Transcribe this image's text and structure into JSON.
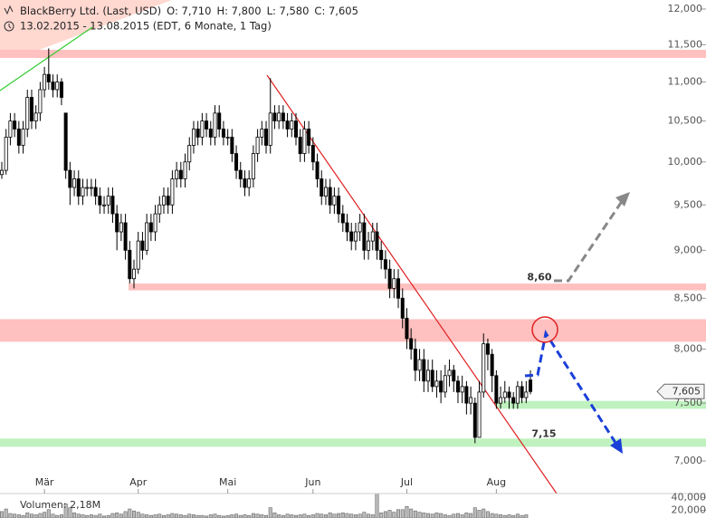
{
  "chart_data": {
    "type": "candlestick",
    "header": {
      "title": "BlackBerry Ltd. (Last, USD)",
      "open": "O: 7,710",
      "high": "H: 7,800",
      "low": "L: 7,580",
      "close": "C: 7,605",
      "range": "13.02.2015 - 13.08.2015 (EDT, 6 Monate, 1 Tag)"
    },
    "categories": [
      null,
      null,
      null,
      null,
      null,
      null,
      null,
      null,
      null,
      null,
      "Mär",
      null,
      null,
      null,
      null,
      null,
      null,
      null,
      null,
      null,
      null,
      null,
      null,
      null,
      null,
      null,
      null,
      null,
      null,
      null,
      null,
      null,
      "Apr",
      null,
      null,
      null,
      null,
      null,
      null,
      null,
      null,
      null,
      null,
      null,
      null,
      null,
      null,
      null,
      null,
      null,
      null,
      null,
      null,
      "Mai",
      null,
      null,
      null,
      null,
      null,
      null,
      null,
      null,
      null,
      null,
      null,
      null,
      null,
      null,
      null,
      null,
      null,
      null,
      null,
      "Jun",
      null,
      null,
      null,
      null,
      null,
      null,
      null,
      null,
      null,
      null,
      null,
      null,
      null,
      null,
      null,
      null,
      null,
      null,
      null,
      null,
      null,
      "Jul",
      null,
      null,
      null,
      null,
      null,
      null,
      null,
      null,
      null,
      null,
      null,
      null,
      null,
      null,
      null,
      null,
      null,
      null,
      null,
      null,
      "Aug",
      null,
      null,
      null,
      null,
      null,
      null,
      null,
      null
    ],
    "open": [
      9.85,
      9.9,
      10.3,
      10.5,
      10.4,
      10.2,
      10.4,
      10.8,
      10.5,
      10.6,
      10.9,
      11.1,
      11.0,
      10.9,
      11.0,
      10.6,
      9.9,
      9.7,
      9.8,
      9.6,
      9.7,
      9.7,
      9.7,
      9.6,
      9.5,
      9.5,
      9.6,
      9.4,
      9.2,
      9.3,
      9.0,
      8.7,
      8.8,
      9.1,
      9.0,
      9.3,
      9.2,
      9.4,
      9.5,
      9.6,
      9.5,
      9.8,
      9.9,
      9.8,
      10.0,
      10.2,
      10.4,
      10.3,
      10.5,
      10.4,
      10.3,
      10.6,
      10.4,
      10.3,
      10.3,
      10.1,
      9.9,
      9.8,
      9.7,
      9.8,
      10.1,
      10.3,
      10.4,
      10.2,
      10.6,
      10.5,
      10.6,
      10.5,
      10.4,
      10.5,
      10.3,
      10.1,
      10.4,
      10.2,
      10.0,
      9.8,
      9.6,
      9.7,
      9.5,
      9.6,
      9.4,
      9.3,
      9.2,
      9.1,
      9.2,
      9.3,
      9.0,
      9.1,
      9.2,
      9.0,
      8.9,
      8.8,
      8.6,
      8.7,
      8.5,
      8.3,
      8.1,
      8.0,
      7.8,
      7.9,
      7.7,
      7.8,
      7.65,
      7.7,
      7.6,
      7.75,
      7.8,
      7.7,
      7.6,
      7.65,
      7.5,
      7.5,
      7.2,
      7.6,
      8.05,
      7.95,
      7.75,
      7.5,
      7.55,
      7.6,
      7.55,
      7.5,
      7.65,
      7.55,
      7.71
    ],
    "high": [
      10.0,
      10.4,
      10.6,
      10.6,
      10.5,
      10.5,
      10.9,
      10.9,
      10.7,
      11.0,
      11.2,
      11.45,
      11.1,
      11.1,
      11.05,
      10.6,
      10.0,
      9.9,
      9.9,
      9.8,
      9.8,
      9.8,
      9.8,
      9.7,
      9.6,
      9.7,
      9.7,
      9.5,
      9.4,
      9.4,
      9.1,
      8.9,
      9.2,
      9.2,
      9.4,
      9.4,
      9.5,
      9.6,
      9.7,
      9.7,
      9.9,
      10.0,
      10.0,
      10.1,
      10.3,
      10.5,
      10.5,
      10.6,
      10.6,
      10.5,
      10.7,
      10.7,
      10.5,
      10.4,
      10.4,
      10.2,
      10.0,
      9.9,
      9.9,
      10.2,
      10.4,
      10.5,
      10.5,
      11.05,
      10.7,
      10.7,
      10.7,
      10.6,
      10.6,
      10.6,
      10.4,
      10.5,
      10.5,
      10.3,
      10.1,
      9.9,
      9.8,
      9.8,
      9.7,
      9.7,
      9.5,
      9.4,
      9.3,
      9.3,
      9.4,
      9.4,
      9.2,
      9.3,
      9.3,
      9.1,
      9.0,
      8.9,
      8.8,
      8.8,
      8.6,
      8.4,
      8.2,
      8.1,
      8.0,
      8.0,
      7.9,
      7.9,
      7.8,
      7.8,
      7.85,
      7.9,
      7.85,
      7.75,
      7.75,
      7.7,
      7.65,
      7.55,
      7.7,
      8.15,
      8.1,
      8.0,
      7.8,
      7.65,
      7.7,
      7.65,
      7.6,
      7.7,
      7.7,
      7.7,
      7.8
    ],
    "low": [
      9.8,
      9.85,
      10.2,
      10.3,
      10.1,
      10.1,
      10.3,
      10.4,
      10.4,
      10.5,
      10.8,
      10.9,
      10.8,
      10.8,
      10.7,
      9.8,
      9.5,
      9.6,
      9.5,
      9.5,
      9.6,
      9.6,
      9.5,
      9.4,
      9.4,
      9.4,
      9.3,
      9.0,
      9.1,
      8.9,
      8.65,
      8.6,
      8.75,
      8.9,
      8.95,
      9.1,
      9.1,
      9.3,
      9.4,
      9.4,
      9.4,
      9.7,
      9.7,
      9.7,
      9.9,
      10.1,
      10.2,
      10.2,
      10.3,
      10.2,
      10.2,
      10.3,
      10.2,
      10.2,
      10.0,
      9.8,
      9.7,
      9.6,
      9.6,
      9.7,
      10.0,
      10.2,
      10.1,
      10.1,
      10.4,
      10.4,
      10.4,
      10.3,
      10.3,
      10.2,
      10.0,
      10.0,
      10.1,
      9.9,
      9.7,
      9.5,
      9.5,
      9.4,
      9.4,
      9.3,
      9.2,
      9.1,
      9.0,
      9.0,
      9.1,
      8.9,
      8.9,
      9.0,
      8.9,
      8.8,
      8.7,
      8.5,
      8.5,
      8.4,
      8.2,
      8.0,
      7.9,
      7.7,
      7.7,
      7.6,
      7.6,
      7.6,
      7.55,
      7.5,
      7.55,
      7.65,
      7.6,
      7.5,
      7.5,
      7.4,
      7.4,
      7.15,
      7.2,
      7.55,
      7.8,
      7.6,
      7.45,
      7.45,
      7.5,
      7.45,
      7.45,
      7.45,
      7.5,
      7.5,
      7.58
    ],
    "close": [
      9.9,
      10.3,
      10.5,
      10.4,
      10.2,
      10.4,
      10.8,
      10.5,
      10.6,
      10.9,
      11.1,
      11.0,
      10.9,
      11.0,
      10.8,
      9.9,
      9.7,
      9.8,
      9.6,
      9.7,
      9.7,
      9.7,
      9.6,
      9.5,
      9.5,
      9.6,
      9.4,
      9.2,
      9.3,
      9.0,
      8.7,
      8.8,
      9.1,
      9.0,
      9.3,
      9.2,
      9.4,
      9.5,
      9.6,
      9.5,
      9.8,
      9.9,
      9.8,
      10.0,
      10.2,
      10.4,
      10.3,
      10.5,
      10.4,
      10.3,
      10.6,
      10.4,
      10.3,
      10.3,
      10.1,
      9.9,
      9.8,
      9.7,
      9.8,
      10.1,
      10.3,
      10.4,
      10.2,
      10.6,
      10.5,
      10.6,
      10.5,
      10.4,
      10.5,
      10.3,
      10.1,
      10.4,
      10.2,
      10.0,
      9.8,
      9.6,
      9.7,
      9.5,
      9.6,
      9.4,
      9.3,
      9.2,
      9.1,
      9.2,
      9.3,
      9.0,
      9.1,
      9.2,
      9.0,
      8.9,
      8.8,
      8.6,
      8.7,
      8.5,
      8.3,
      8.1,
      8.0,
      7.8,
      7.9,
      7.7,
      7.8,
      7.65,
      7.7,
      7.6,
      7.75,
      7.8,
      7.7,
      7.6,
      7.65,
      7.5,
      7.55,
      7.2,
      7.6,
      8.05,
      7.95,
      7.75,
      7.5,
      7.55,
      7.6,
      7.55,
      7.5,
      7.65,
      7.55,
      7.6,
      7.605
    ],
    "last_label": "7,605",
    "ylim": [
      6.77,
      12.13
    ],
    "log_y": true,
    "yticks": [
      {
        "value": 7,
        "label": "7,000"
      },
      {
        "value": 7.5,
        "label": "7,500"
      },
      {
        "value": 8,
        "label": "8,000"
      },
      {
        "value": 8.5,
        "label": "8,500"
      },
      {
        "value": 9,
        "label": "9,000"
      },
      {
        "value": 9.5,
        "label": "9,500"
      },
      {
        "value": 10,
        "label": "10,000"
      },
      {
        "value": 10.5,
        "label": "10,500"
      },
      {
        "value": 11,
        "label": "11,000"
      },
      {
        "value": 11.5,
        "label": "11,500"
      },
      {
        "value": 12,
        "label": "12,000"
      }
    ],
    "volume": [
      18000,
      22000,
      15000,
      14000,
      13000,
      12000,
      16000,
      14000,
      13000,
      15000,
      17000,
      21000,
      14000,
      12000,
      13000,
      30000,
      24000,
      16000,
      14000,
      13000,
      12000,
      13000,
      12000,
      14000,
      11000,
      12000,
      15000,
      16000,
      14000,
      18000,
      22000,
      19000,
      17000,
      14000,
      13000,
      12000,
      13000,
      14000,
      12000,
      13000,
      15000,
      14000,
      13000,
      12000,
      14000,
      13000,
      12000,
      12000,
      11000,
      13000,
      14000,
      12000,
      11000,
      12000,
      13000,
      14000,
      12000,
      13000,
      12000,
      15000,
      14000,
      13000,
      12000,
      24000,
      16000,
      13000,
      12000,
      14000,
      13000,
      12000,
      13000,
      14000,
      12000,
      13000,
      15000,
      14000,
      13000,
      16000,
      14000,
      15000,
      16000,
      15000,
      14000,
      13000,
      14000,
      17000,
      14000,
      13000,
      46000,
      16000,
      18000,
      20000,
      17000,
      21000,
      21000,
      26000,
      22000,
      19000,
      17000,
      16000,
      15000,
      14000,
      16000,
      15000,
      13000,
      12000,
      14000,
      15000,
      13000,
      16000,
      15000,
      24000,
      20000,
      22000,
      18000,
      15000,
      14000,
      13000,
      12000,
      13000,
      12000,
      14000,
      12000,
      13000,
      2180
    ],
    "volume_label": "Volumen: 2,18M",
    "vlim": [
      8000,
      46000
    ],
    "vticks": [
      {
        "value": 20000,
        "label": "20,000"
      },
      {
        "value": 40000,
        "label": "40,000"
      }
    ],
    "zones": [
      {
        "lo": 11.32,
        "hi": 11.43,
        "color": "#ffc0c0"
      },
      {
        "lo": 8.58,
        "hi": 8.65,
        "color": "#ffc0c0"
      },
      {
        "lo": 8.07,
        "hi": 8.29,
        "color": "#ffc0c0"
      },
      {
        "lo": 7.45,
        "hi": 7.52,
        "color": "#bff2bf"
      },
      {
        "lo": 7.12,
        "hi": 7.19,
        "color": "#bff2bf"
      }
    ],
    "annotations": [
      {
        "value": 8.6,
        "label": "8,60",
        "color": "#cc0000"
      },
      {
        "value": 7.15,
        "label": "7,15",
        "color": "#00a000"
      }
    ]
  }
}
